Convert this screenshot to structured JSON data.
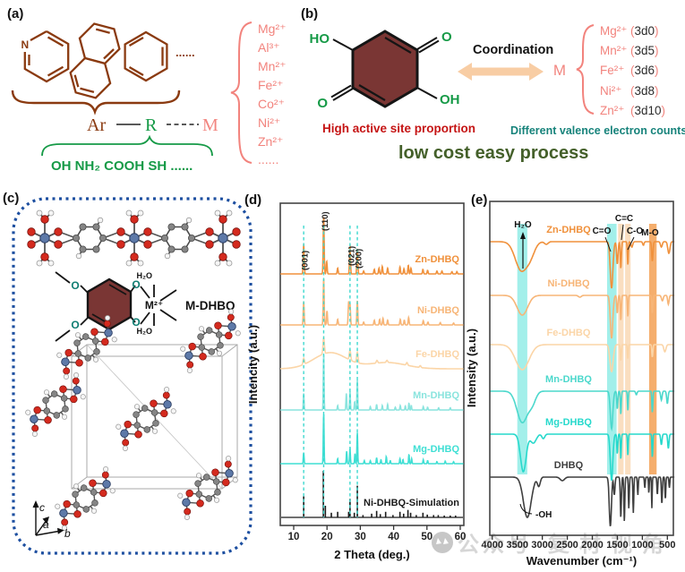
{
  "punct": {
    "open": "(",
    "close": ")"
  },
  "panels": {
    "a": {
      "label": "(a)",
      "nitrogen": "N",
      "dots": "......",
      "ar": "Ar",
      "r": "R",
      "m": "M",
      "functional_groups": "OH  NH₂  COOH  SH  ......",
      "metal_ions": [
        "Mg²⁺",
        "Al³⁺",
        "Mn²⁺",
        "Fe²⁺",
        "Co²⁺",
        "Ni²⁺",
        "Zn²⁺",
        "......"
      ]
    },
    "b": {
      "label": "(b)",
      "ho": "HO",
      "o_tr": "O",
      "o_bl": "O",
      "oh": "OH",
      "coordination": "Coordination",
      "m": "M",
      "metals": [
        [
          "Mg²⁺",
          "3d0"
        ],
        [
          "Mn²⁺",
          "3d5"
        ],
        [
          "Fe²⁺",
          "3d6"
        ],
        [
          "Ni²⁺",
          "3d8"
        ],
        [
          "Zn²⁺",
          "3d10"
        ]
      ],
      "high_active": "High active site proportion",
      "valence": "Different valence electron counts",
      "low_cost": "low cost  easy process"
    },
    "c": {
      "label": "(c)",
      "h2o_top": "H₂O",
      "h2o_bottom": "H₂O",
      "m_center": "M²⁺",
      "compound": "M-DHBQ",
      "axis_a": "a",
      "axis_b": "b",
      "axis_c": "c"
    },
    "d": {
      "label": "(d)"
    },
    "e": {
      "label": "(e)"
    }
  },
  "watermark": {
    "icon": "chat-bubble",
    "text1": "公众号",
    "text2": "复材视角"
  },
  "chart_data": [
    {
      "type": "line",
      "panel": "d",
      "title": "",
      "xlabel": "2 Theta (deg.)",
      "ylabel": "Intencity (a.u.)",
      "xlim": [
        6,
        61
      ],
      "xticks": [
        10,
        20,
        30,
        40,
        50,
        60
      ],
      "grid": false,
      "legend_position": "labels-on-curves",
      "guide_lines_x": [
        13,
        19,
        26.9,
        29.1
      ],
      "peak_labels": [
        {
          "text": "(001)",
          "x": 13
        },
        {
          "text": "(110)",
          "x": 19
        },
        {
          "text": "(021)",
          "x": 26.9
        },
        {
          "text": "(200)",
          "x": 29.1
        }
      ],
      "series": [
        {
          "name": "Zn-DHBQ",
          "color": "#f0913c",
          "base": 306,
          "amp": 64,
          "w": 0.2,
          "peaks": [
            [
              13,
              0.52
            ],
            [
              19,
              1
            ],
            [
              19.9,
              0.22
            ],
            [
              23.2,
              0.1
            ],
            [
              26.9,
              0.48
            ],
            [
              29.1,
              0.44
            ],
            [
              31,
              0.05
            ],
            [
              34.2,
              0.08
            ],
            [
              35.6,
              0.1
            ],
            [
              36.6,
              0.13
            ],
            [
              38.2,
              0.1
            ],
            [
              41.9,
              0.12
            ],
            [
              43.1,
              0.09
            ],
            [
              44.4,
              0.15
            ],
            [
              45.2,
              0.1
            ],
            [
              48.8,
              0.08
            ],
            [
              50.2,
              0.06
            ],
            [
              53,
              0.05
            ],
            [
              54.5,
              0.05
            ],
            [
              57.5,
              0.04
            ],
            [
              59,
              0.04
            ]
          ]
        },
        {
          "name": "Ni-DHBQ",
          "color": "#f7b577",
          "base": 363,
          "amp": 52,
          "w": 0.2,
          "peaks": [
            [
              13,
              0.5
            ],
            [
              19,
              1
            ],
            [
              20,
              0.3
            ],
            [
              23.2,
              0.12
            ],
            [
              26.5,
              0.5
            ],
            [
              26.9,
              0.45
            ],
            [
              29.1,
              0.52
            ],
            [
              31,
              0.06
            ],
            [
              34.2,
              0.1
            ],
            [
              35.8,
              0.12
            ],
            [
              36.8,
              0.14
            ],
            [
              38.2,
              0.1
            ],
            [
              42,
              0.12
            ],
            [
              43.2,
              0.1
            ],
            [
              44.5,
              0.16
            ],
            [
              48.9,
              0.09
            ],
            [
              50.3,
              0.06
            ],
            [
              54,
              0.05
            ],
            [
              58,
              0.04
            ]
          ]
        },
        {
          "name": "Fe-DHBQ",
          "color": "#fbd5a7",
          "base": 412,
          "amp": 20,
          "w": 0.3,
          "peaks": [
            [
              13,
              0.35
            ],
            [
              19,
              0.9
            ],
            [
              26.9,
              0.55
            ],
            [
              29.1,
              0.6
            ],
            [
              35,
              0.15
            ],
            [
              38,
              0.12
            ],
            [
              44,
              0.15
            ],
            [
              48,
              0.1
            ],
            [
              21,
              0.9,
              7
            ],
            [
              38,
              0.35,
              8
            ]
          ]
        },
        {
          "name": "Mn-DHBQ",
          "color": "#8ae4de",
          "base": 458,
          "amp": 62,
          "w": 0.16,
          "peaks": [
            [
              13,
              0.3
            ],
            [
              19,
              1
            ],
            [
              23.2,
              0.08
            ],
            [
              25.8,
              0.3
            ],
            [
              26.9,
              0.35
            ],
            [
              28.3,
              0.15
            ],
            [
              29.1,
              0.55
            ],
            [
              33,
              0.06
            ],
            [
              34.9,
              0.1
            ],
            [
              36.6,
              0.08
            ],
            [
              38.2,
              0.1
            ],
            [
              40.5,
              0.05
            ],
            [
              42,
              0.08
            ],
            [
              43.5,
              0.07
            ],
            [
              44.6,
              0.12
            ],
            [
              45.3,
              0.08
            ],
            [
              48.9,
              0.06
            ],
            [
              50.2,
              0.05
            ],
            [
              53.5,
              0.04
            ],
            [
              57,
              0.04
            ]
          ]
        },
        {
          "name": "Mg-DHBQ",
          "color": "#3fdfd4",
          "base": 518,
          "amp": 56,
          "w": 0.16,
          "peaks": [
            [
              13,
              0.22
            ],
            [
              19,
              1
            ],
            [
              23.2,
              0.1
            ],
            [
              25.9,
              0.25
            ],
            [
              26.9,
              0.3
            ],
            [
              28.4,
              0.2
            ],
            [
              29.1,
              0.62
            ],
            [
              31.2,
              0.06
            ],
            [
              33,
              0.06
            ],
            [
              34.9,
              0.12
            ],
            [
              36.2,
              0.08
            ],
            [
              37.8,
              0.14
            ],
            [
              39,
              0.06
            ],
            [
              41.9,
              0.1
            ],
            [
              42.8,
              0.08
            ],
            [
              44.6,
              0.18
            ],
            [
              45.4,
              0.1
            ],
            [
              48.9,
              0.08
            ],
            [
              50.2,
              0.06
            ],
            [
              53,
              0.04
            ],
            [
              55.5,
              0.05
            ],
            [
              58,
              0.04
            ]
          ]
        },
        {
          "name": "Ni-DHBQ-Simulation",
          "color": "#1a1a1a",
          "base": 578,
          "amp": 52,
          "style": "sticks",
          "peaks": [
            [
              13,
              0.45
            ],
            [
              18.9,
              1
            ],
            [
              19.5,
              0.25
            ],
            [
              21.3,
              0.1
            ],
            [
              23.2,
              0.12
            ],
            [
              26.5,
              0.12
            ],
            [
              26.9,
              0.4
            ],
            [
              28.2,
              0.1
            ],
            [
              29.1,
              0.68
            ],
            [
              30.8,
              0.05
            ],
            [
              33.4,
              0.08
            ],
            [
              34.9,
              0.14
            ],
            [
              36,
              0.07
            ],
            [
              37.6,
              0.12
            ],
            [
              39.8,
              0.05
            ],
            [
              41.9,
              0.12
            ],
            [
              43,
              0.08
            ],
            [
              44.3,
              0.16
            ],
            [
              45.1,
              0.1
            ],
            [
              46.8,
              0.05
            ],
            [
              48.8,
              0.1
            ],
            [
              50.1,
              0.06
            ],
            [
              52,
              0.05
            ],
            [
              53.4,
              0.05
            ],
            [
              55.2,
              0.04
            ],
            [
              57,
              0.04
            ],
            [
              58.6,
              0.04
            ]
          ]
        }
      ]
    },
    {
      "type": "line",
      "panel": "e",
      "title": "",
      "xlabel": "Wavenumber (cm⁻¹)",
      "ylabel": "Intensity (a.u.)",
      "xlim": [
        4050,
        360
      ],
      "xticks": [
        4000,
        3500,
        3000,
        2500,
        2000,
        1500,
        1000,
        500
      ],
      "grid": false,
      "legend_position": "labels-on-curves",
      "bands": [
        {
          "x": 3400,
          "hw": 100,
          "color": "#45e0d6",
          "opacity": 0.5
        },
        {
          "x": 1610,
          "hw": 95,
          "color": "#45e0d6",
          "opacity": 0.5
        },
        {
          "x": 1430,
          "hw": 55,
          "color": "#f6c38d",
          "opacity": 0.55
        },
        {
          "x": 1290,
          "hw": 55,
          "color": "#f6c38d",
          "opacity": 0.55
        },
        {
          "x": 790,
          "hw": 75,
          "color": "#f29a49",
          "opacity": 0.8
        }
      ],
      "annotations": [
        "H₂O",
        "C=O",
        "C=C",
        "C-O",
        "M-O",
        "-OH"
      ],
      "series": [
        {
          "name": "Zn-DHBQ",
          "color": "#f0913c",
          "base": 270,
          "dips": [
            [
              3420,
              32,
              170
            ],
            [
              3230,
              12,
              120
            ],
            [
              2920,
              3,
              50
            ],
            [
              1615,
              52,
              38
            ],
            [
              1500,
              25,
              20
            ],
            [
              1430,
              30,
              16
            ],
            [
              1290,
              26,
              14
            ],
            [
              1210,
              6,
              25
            ],
            [
              980,
              4,
              20
            ],
            [
              800,
              22,
              18
            ],
            [
              620,
              6,
              25
            ],
            [
              470,
              13,
              30
            ]
          ]
        },
        {
          "name": "Ni-DHBQ",
          "color": "#f7b577",
          "base": 330,
          "dips": [
            [
              3400,
              22,
              150
            ],
            [
              2250,
              2,
              40
            ],
            [
              1615,
              48,
              35
            ],
            [
              1500,
              20,
              16
            ],
            [
              1430,
              28,
              15
            ],
            [
              1290,
              24,
              13
            ],
            [
              800,
              20,
              15
            ],
            [
              600,
              6,
              25
            ],
            [
              480,
              10,
              20
            ]
          ]
        },
        {
          "name": "Fe-DHBQ",
          "color": "#fbd5a7",
          "base": 385,
          "dips": [
            [
              3400,
              28,
              190
            ],
            [
              1615,
              30,
              45
            ],
            [
              1430,
              18,
              15
            ],
            [
              1290,
              16,
              13
            ],
            [
              800,
              14,
              15
            ],
            [
              550,
              8,
              30
            ]
          ]
        },
        {
          "name": "Mn-DHBQ",
          "color": "#4cd8cc",
          "base": 437,
          "dips": [
            [
              3400,
              35,
              150
            ],
            [
              3200,
              12,
              100
            ],
            [
              1615,
              42,
              35
            ],
            [
              1500,
              20,
              15
            ],
            [
              1430,
              26,
              14
            ],
            [
              1290,
              22,
              12
            ],
            [
              1120,
              4,
              20
            ],
            [
              800,
              24,
              14
            ],
            [
              620,
              10,
              20
            ],
            [
              500,
              14,
              20
            ]
          ]
        },
        {
          "name": "Mg-DHBQ",
          "color": "#27d9cc",
          "base": 485,
          "dips": [
            [
              3380,
              42,
              80
            ],
            [
              3180,
              10,
              80
            ],
            [
              2980,
              5,
              40
            ],
            [
              1615,
              52,
              35
            ],
            [
              1500,
              22,
              14
            ],
            [
              1430,
              28,
              13
            ],
            [
              1290,
              24,
              12
            ],
            [
              800,
              26,
              12
            ],
            [
              620,
              12,
              18
            ],
            [
              480,
              16,
              18
            ]
          ]
        },
        {
          "name": "DHBQ",
          "color": "#3f3f3f",
          "base": 533,
          "dips": [
            [
              3300,
              45,
              110
            ],
            [
              3070,
              10,
              40
            ],
            [
              2600,
              4,
              60
            ],
            [
              1640,
              55,
              30
            ],
            [
              1560,
              20,
              18
            ],
            [
              1430,
              45,
              16
            ],
            [
              1360,
              50,
              14
            ],
            [
              1270,
              35,
              13
            ],
            [
              1180,
              40,
              12
            ],
            [
              1090,
              20,
              12
            ],
            [
              950,
              12,
              12
            ],
            [
              870,
              18,
              10
            ],
            [
              810,
              35,
              10
            ],
            [
              700,
              20,
              12
            ],
            [
              610,
              30,
              14
            ],
            [
              540,
              25,
              12
            ],
            [
              460,
              12,
              12
            ]
          ]
        }
      ]
    }
  ]
}
